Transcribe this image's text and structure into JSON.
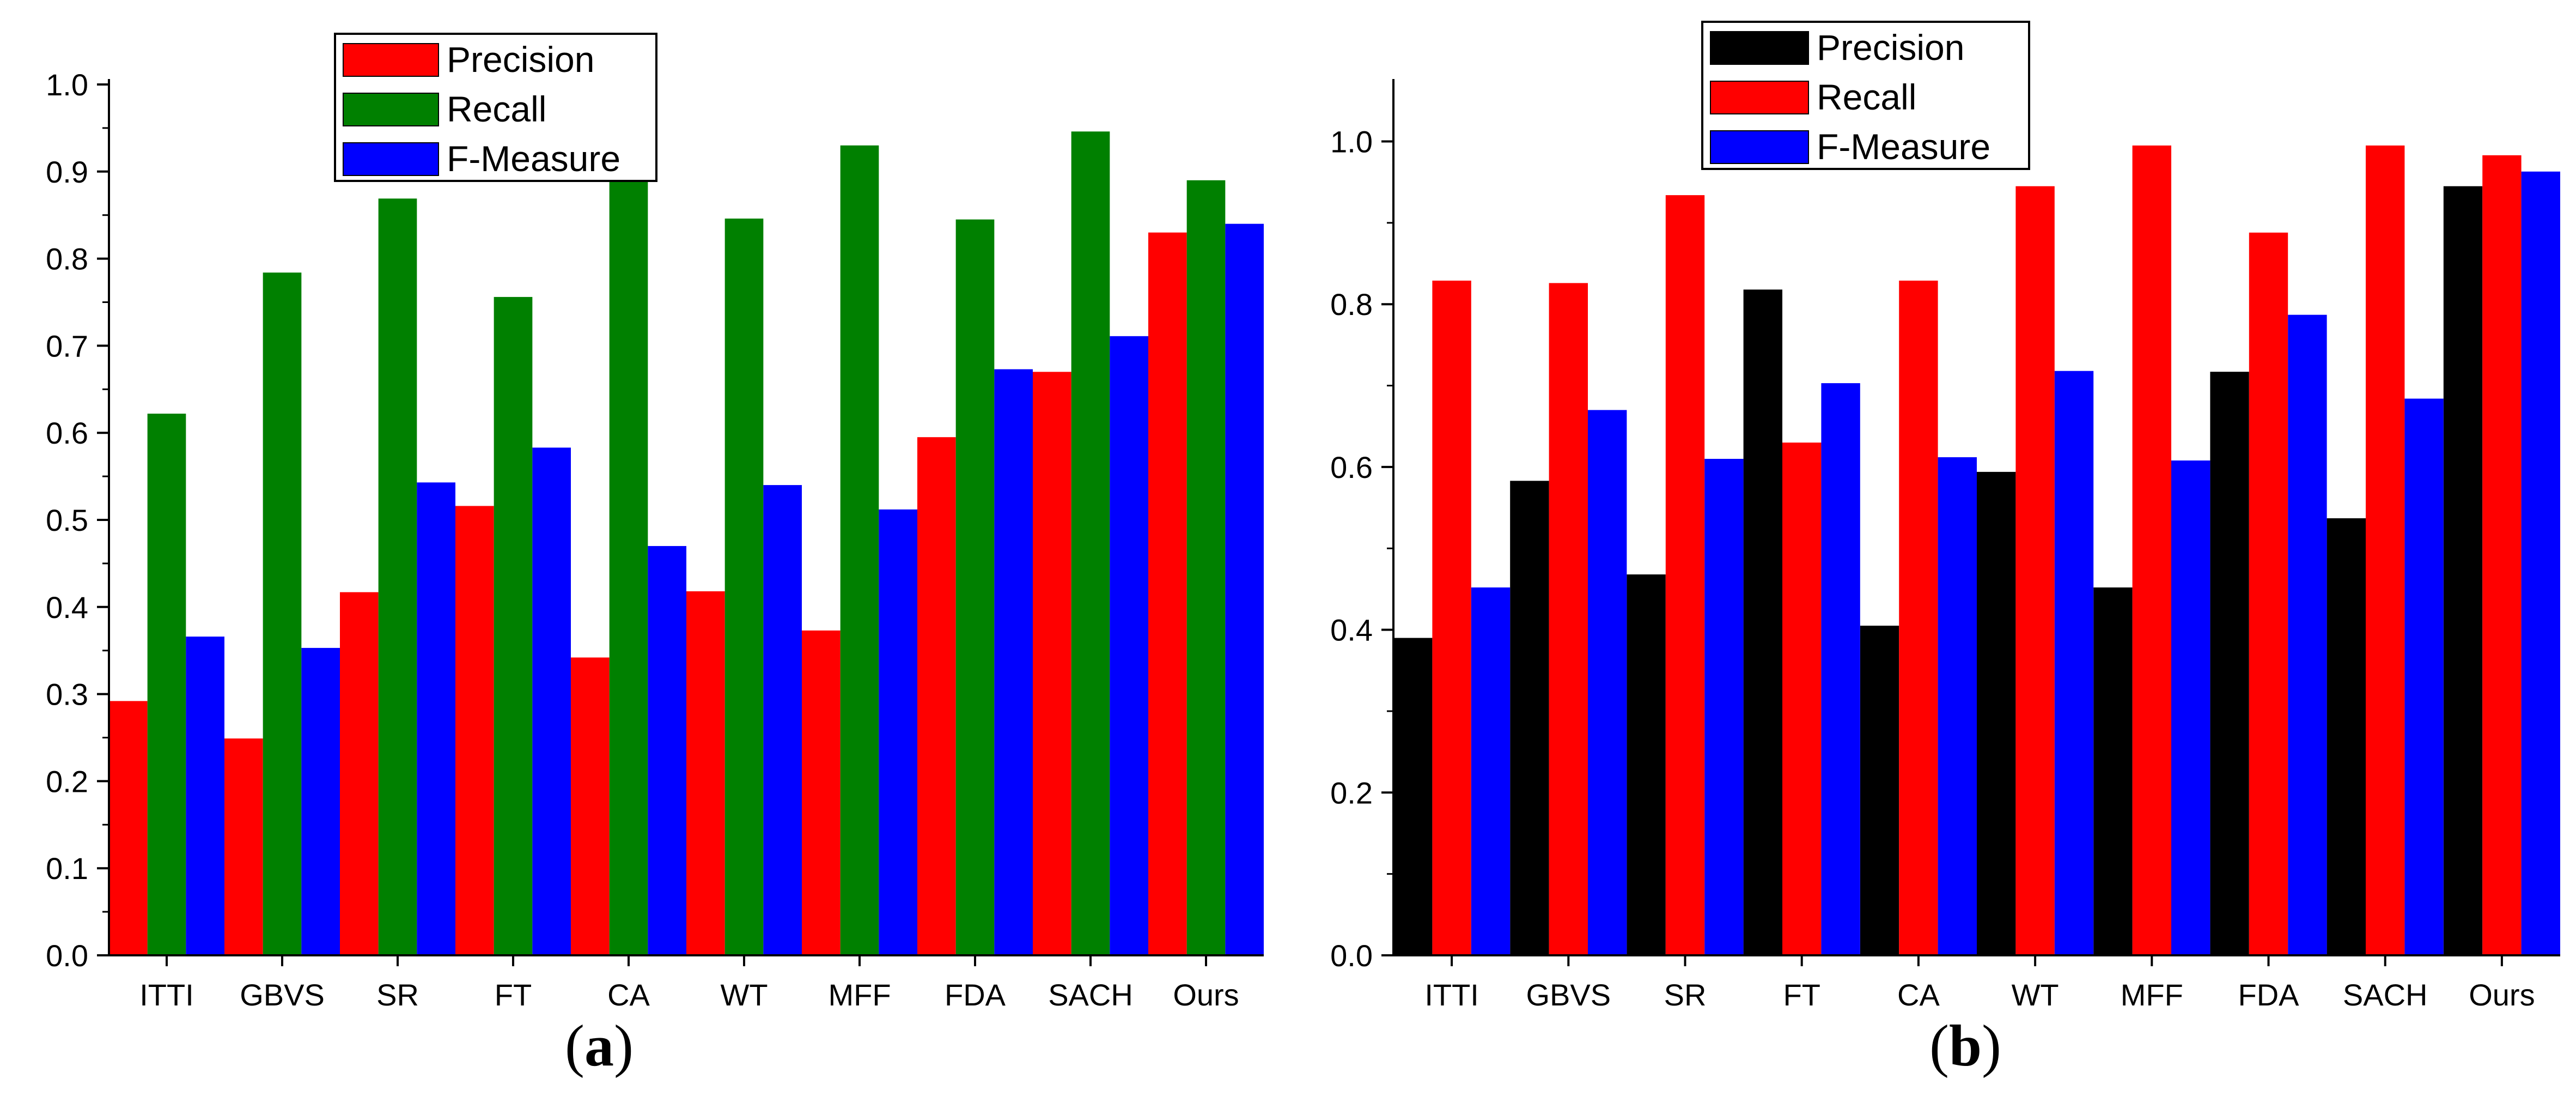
{
  "chart_data": [
    {
      "type": "bar",
      "panel": "a",
      "caption": {
        "open": "(",
        "letter": "a",
        "close": ")"
      },
      "categories": [
        "ITTI",
        "GBVS",
        "SR",
        "FT",
        "CA",
        "WT",
        "MFF",
        "FDA",
        "SACH",
        "Ours"
      ],
      "series": [
        {
          "name": "Precision",
          "color": "#ff0000",
          "values": [
            0.292,
            0.249,
            0.417,
            0.516,
            0.342,
            0.418,
            0.373,
            0.595,
            0.67,
            0.83
          ]
        },
        {
          "name": "Recall",
          "color": "#008000",
          "values": [
            0.622,
            0.784,
            0.869,
            0.756,
            0.896,
            0.846,
            0.93,
            0.845,
            0.946,
            0.89
          ]
        },
        {
          "name": "F-Measure",
          "color": "#0000ff",
          "values": [
            0.366,
            0.353,
            0.543,
            0.583,
            0.47,
            0.54,
            0.512,
            0.673,
            0.711,
            0.84
          ]
        }
      ],
      "ylim": [
        0,
        1.0
      ],
      "yticks": [
        0.0,
        0.1,
        0.2,
        0.3,
        0.4,
        0.5,
        0.6,
        0.7,
        0.8,
        0.9,
        1.0
      ],
      "ytick_labels": [
        "0.0",
        "0.1",
        "0.2",
        "0.3",
        "0.4",
        "0.5",
        "0.6",
        "0.7",
        "0.8",
        "0.9",
        "1.0"
      ],
      "title": "",
      "xlabel": "",
      "ylabel": "",
      "legend": "top-center"
    },
    {
      "type": "bar",
      "panel": "b",
      "caption": {
        "open": "(",
        "letter": "b",
        "close": ")"
      },
      "categories": [
        "ITTI",
        "GBVS",
        "SR",
        "FT",
        "CA",
        "WT",
        "MFF",
        "FDA",
        "SACH",
        "Ours"
      ],
      "series": [
        {
          "name": "Precision",
          "color": "#000000",
          "values": [
            0.39,
            0.583,
            0.468,
            0.818,
            0.405,
            0.594,
            0.452,
            0.717,
            0.537,
            0.945
          ]
        },
        {
          "name": "Recall",
          "color": "#ff0000",
          "values": [
            0.829,
            0.826,
            0.934,
            0.63,
            0.829,
            0.945,
            0.995,
            0.888,
            0.995,
            0.983
          ]
        },
        {
          "name": "F-Measure",
          "color": "#0000ff",
          "values": [
            0.452,
            0.67,
            0.61,
            0.703,
            0.612,
            0.718,
            0.608,
            0.787,
            0.684,
            0.963
          ]
        }
      ],
      "ylim": [
        0,
        1.07
      ],
      "yticks": [
        0.0,
        0.2,
        0.4,
        0.6,
        0.8,
        1.0
      ],
      "ytick_labels": [
        "0.0",
        "0.2",
        "0.4",
        "0.6",
        "0.8",
        "1.0"
      ],
      "title": "",
      "xlabel": "",
      "ylabel": "",
      "legend": "top-center"
    }
  ]
}
